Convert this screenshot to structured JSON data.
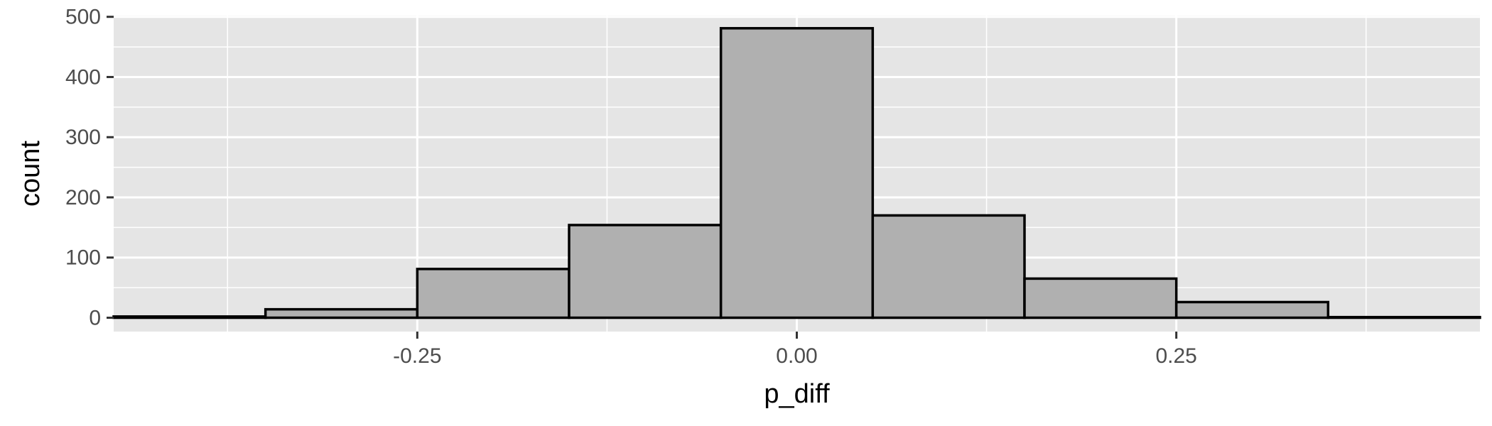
{
  "chart_data": {
    "type": "bar",
    "subtype": "histogram",
    "xlabel": "p_diff",
    "ylabel": "count",
    "xlim": [
      -0.45,
      0.45
    ],
    "ylim": [
      -23,
      502
    ],
    "x_ticks": [
      {
        "value": -0.25,
        "label": "-0.25"
      },
      {
        "value": 0.0,
        "label": "0.00"
      },
      {
        "value": 0.25,
        "label": "0.25"
      }
    ],
    "x_minor_ticks": [
      -0.375,
      -0.125,
      0.125,
      0.375
    ],
    "y_ticks": [
      {
        "value": 0,
        "label": "0"
      },
      {
        "value": 100,
        "label": "100"
      },
      {
        "value": 200,
        "label": "200"
      },
      {
        "value": 300,
        "label": "300"
      },
      {
        "value": 400,
        "label": "400"
      },
      {
        "value": 500,
        "label": "500"
      }
    ],
    "y_minor_ticks": [
      50,
      150,
      250,
      350,
      450
    ],
    "grid": true,
    "bins": [
      {
        "x0": -0.45,
        "x1": -0.35,
        "count": 2
      },
      {
        "x0": -0.35,
        "x1": -0.25,
        "count": 14
      },
      {
        "x0": -0.25,
        "x1": -0.15,
        "count": 81
      },
      {
        "x0": -0.15,
        "x1": -0.05,
        "count": 154
      },
      {
        "x0": -0.05,
        "x1": 0.05,
        "count": 481
      },
      {
        "x0": 0.05,
        "x1": 0.15,
        "count": 170
      },
      {
        "x0": 0.15,
        "x1": 0.25,
        "count": 65
      },
      {
        "x0": 0.25,
        "x1": 0.35,
        "count": 26
      },
      {
        "x0": 0.35,
        "x1": 0.45,
        "count": 1
      }
    ],
    "colors": {
      "panel_background": "#e5e5e5",
      "grid": "#ffffff",
      "bar_fill": "#b0b0b0",
      "bar_outline": "#000000",
      "tick_text": "#4d4d4d",
      "axis_title": "#000000"
    }
  }
}
